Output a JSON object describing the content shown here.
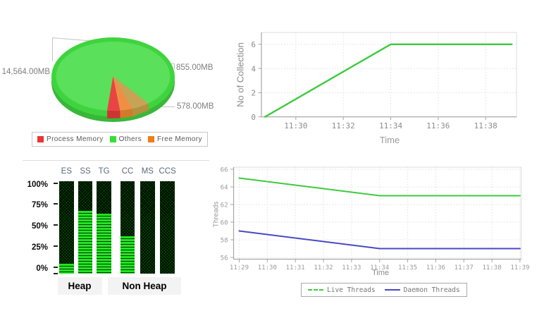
{
  "page": {
    "background": "#ffffff"
  },
  "chart_data": [
    {
      "type": "pie",
      "name": "memory-distribution",
      "unit": "MB",
      "slices": [
        {
          "label": "Process Memory",
          "value_mb": 855,
          "value_label": "855.00MB",
          "color": "#e93535"
        },
        {
          "label": "Others",
          "value_mb": 14564,
          "value_label": "14,564.00MB",
          "color": "#35df35"
        },
        {
          "label": "Free Memory",
          "value_mb": 578,
          "value_label": "578.00MB",
          "color": "#f07d16"
        }
      ],
      "legend_position": "bottom"
    },
    {
      "type": "line",
      "name": "gc-collections",
      "xlabel": "Time",
      "ylabel": "No of Collection",
      "x_ticks": [
        "11:30",
        "11:32",
        "11:34",
        "11:36",
        "11:38"
      ],
      "y_ticks": [
        0,
        2,
        4,
        6
      ],
      "ylim": [
        0,
        7
      ],
      "grid": true,
      "series": [
        {
          "name": "No of Collection",
          "color": "#3dcb3d",
          "points": [
            [
              "11:28.7",
              0
            ],
            [
              "11:34",
              6
            ],
            [
              "11:39.1",
              6
            ]
          ]
        }
      ]
    },
    {
      "type": "bar",
      "name": "memory-pools",
      "style": "led-meter",
      "y_ticks": [
        "100%",
        "75%",
        "50%",
        "25%",
        "0%"
      ],
      "ylim": [
        0,
        100
      ],
      "on_color": "#22e522",
      "off_color": "#010701",
      "groups": [
        {
          "label": "Heap",
          "bars": [
            {
              "label": "ES",
              "value_pct": 4
            },
            {
              "label": "SS",
              "value_pct": 67
            },
            {
              "label": "TG",
              "value_pct": 64
            }
          ]
        },
        {
          "label": "Non Heap",
          "bars": [
            {
              "label": "CC",
              "value_pct": 37
            },
            {
              "label": "MS",
              "value_pct": 0
            },
            {
              "label": "CCS",
              "value_pct": 0
            }
          ]
        }
      ]
    },
    {
      "type": "line",
      "name": "threads",
      "xlabel": "Time",
      "ylabel": "Threads",
      "x_ticks": [
        "11:29",
        "11:30",
        "11:31",
        "11:32",
        "11:33",
        "11:34",
        "11:35",
        "11:36",
        "11:37",
        "11:38",
        "11:39"
      ],
      "y_ticks": [
        56,
        58,
        60,
        62,
        64,
        66
      ],
      "ylim": [
        56,
        66
      ],
      "grid": true,
      "legend_position": "bottom",
      "series": [
        {
          "name": "Live Threads",
          "color": "#3dcb3d",
          "dash": "dashed",
          "points": [
            [
              "11:29",
              65
            ],
            [
              "11:34",
              63
            ],
            [
              "11:39",
              63
            ]
          ]
        },
        {
          "name": "Daemon Threads",
          "color": "#4848c8",
          "dash": "solid",
          "points": [
            [
              "11:29",
              59
            ],
            [
              "11:34",
              57
            ],
            [
              "11:39",
              57
            ]
          ]
        }
      ]
    }
  ]
}
